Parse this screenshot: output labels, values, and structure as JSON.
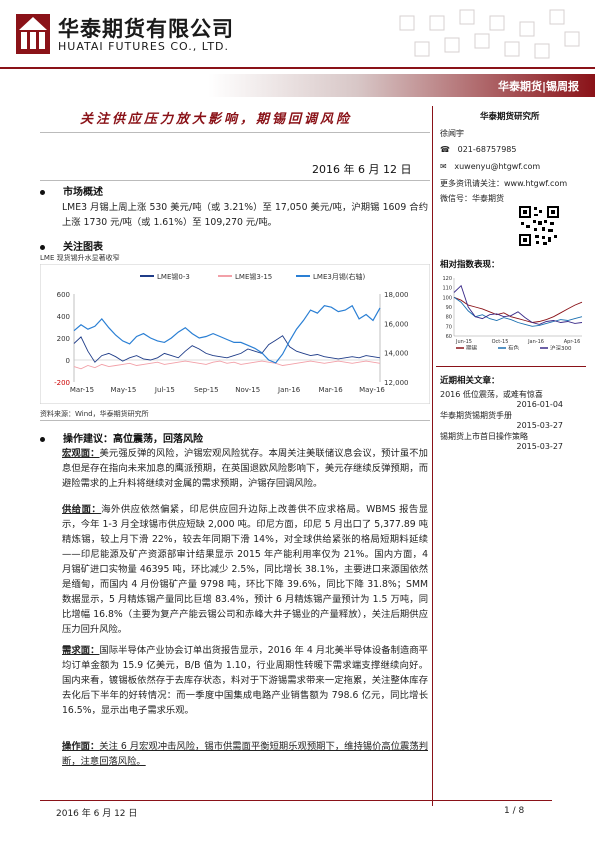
{
  "header": {
    "company_cn": "华泰期货有限公司",
    "company_en": "HUATAI FUTURES CO., LTD.",
    "banner": "华泰期货|锡周报"
  },
  "title": "关注供应压力放大影响，期锡回调风险",
  "date": "2016 年 6 月 12 日",
  "sections": {
    "market_head": "市场概述",
    "market_text": "LME3 月锡上周上涨 530 美元/吨（或 3.21%）至 17,050 美元/吨，沪期锡 1609 合约上涨 1730 元/吨（或 1.61%）至 109,270 元/吨。",
    "chart_head": "关注图表",
    "chart_caption": "LME 现货锡升水显著收窄",
    "chart_source": "资料来源：Wind，华泰期货研究所",
    "advice_head": "操作建议：高位震荡，回落风险",
    "macro_label": "宏观面：",
    "macro_text": "美元强反弹的风险，沪锡宏观风险犹存。本周关注美联储议息会议，预计虽不加息但是存在指向未来加息的鹰派预期，在英国退欧风险影响下，美元存继续反弹预期，而避险需求的上升料将继续对金属的需求预期，沪锡存回调风险。",
    "supply_label": "供给面：",
    "supply_text": "海外供应依然偏紧，印尼供应回升边际上改善供不应求格局。WBMS 报告显示，今年 1-3 月全球锡市供应短缺 2,000 吨。印尼方面，印尼 5 月出口了 5,377.89 吨精炼锡，较上月下滑 22%，较去年同期下滑 14%，对全球供给紧张的格局短期料延续——印尼能源及矿产资源部审计结果显示 2015 年产能利用率仅为 21%。国内方面，4 月锡矿进口实物量 46395 吨，环比减少 2.5%，同比增长 38.1%，主要进口来源国依然是缅甸，而国内 4 月份锡矿产量 9798 吨，环比下降 39.6%，同比下降 31.8%；SMM 数据显示，5 月精炼锡产量同比巨增 83.4%，预计 6 月精炼锡产量预计为 1.5 万吨，同比增幅 16.8%（主要为复产产能云锡公司和赤峰大井子锡业的产量释放），关注后期供应压力回升风险。",
    "demand_label": "需求面：",
    "demand_text": "国际半导体产业协会订单出货报告显示，2016 年 4 月北美半导体设备制造商平均订单金额为 15.9 亿美元，B/B 值为 1.10，行业周期性转暖下需求端支撑继续向好。国内来看，镀锡板依然存于去库存状态，料对于下游锡需求带来一定拖累，关注整体库存去化后下半年的好转情况：而一季度中国集成电路产业销售额为 798.6 亿元，同比增长 16.5%，显示出电子需求乐观。",
    "op_label": "操作面：",
    "op_text": "关注 6 月宏观冲击风险，锡市供需面平衡短期乐观预期下，维持锡价高位震荡判断，注意回落风险。"
  },
  "sidebar": {
    "institute": "华泰期货研究所",
    "analyst": "徐闻宇",
    "phone": "021-68757985",
    "email": "xuwenyu@htgwf.com",
    "more_label": "更多资讯请关注：",
    "website": "www.htgwf.com",
    "wechat": "微信号：华泰期货",
    "relative_index_head": "相对指数表现：",
    "recent_head": "近期相关文章：",
    "articles": [
      {
        "title": "2016 低位震荡，或难有惊喜",
        "date": "2016-01-04"
      },
      {
        "title": "华泰期货锡期货手册",
        "date": "2015-03-27"
      },
      {
        "title": "锡期货上市首日操作策略",
        "date": "2015-03-27"
      }
    ]
  },
  "footer": {
    "date": "2016 年 6 月 12 日",
    "page": "1 / 8"
  },
  "chart_data": [
    {
      "type": "line",
      "title": "",
      "x_ticks": [
        "Mar-15",
        "May-15",
        "Jul-15",
        "Sep-15",
        "Nov-15",
        "Jan-16",
        "Mar-16",
        "May-16"
      ],
      "y_left_ticks": [
        -200,
        0,
        200,
        400,
        600
      ],
      "y_right_ticks": [
        12000,
        14000,
        16000,
        18000
      ],
      "ylim_left": [
        -200,
        600
      ],
      "ylim_right": [
        12000,
        18000
      ],
      "legend": [
        "LME锡0-3",
        "LME锡3-15",
        "LME3月锡(右轴)"
      ],
      "series": [
        {
          "name": "LME锡0-3",
          "color": "#1f3c88",
          "axis": "left",
          "values": [
            150,
            210,
            80,
            -20,
            40,
            60,
            30,
            -10,
            20,
            40,
            10,
            0,
            20,
            60,
            40,
            20,
            80,
            130,
            100,
            60,
            40,
            30,
            20,
            40,
            60,
            100,
            80,
            60,
            140,
            180,
            220,
            120,
            80,
            60,
            40,
            50,
            30,
            20,
            10,
            20,
            30,
            20,
            40,
            30,
            20
          ]
        },
        {
          "name": "LME锡3-15",
          "color": "#f2a0a8",
          "axis": "left",
          "values": [
            -60,
            -80,
            -50,
            -70,
            -40,
            -60,
            -50,
            -40,
            -30,
            -50,
            -40,
            -30,
            -20,
            -40,
            -30,
            -20,
            -10,
            -20,
            -30,
            -40,
            -20,
            -10,
            -30,
            -20,
            -40,
            -30,
            -20,
            -10,
            -20,
            -30,
            -50,
            -40,
            -30,
            -20,
            -10,
            -20,
            -30,
            -20,
            -10,
            -20,
            -30,
            -20,
            -10,
            -20,
            -30
          ]
        },
        {
          "name": "LME3月锡(右轴)",
          "color": "#2a7fd4",
          "axis": "right",
          "values": [
            15500,
            15900,
            15600,
            15800,
            16300,
            15700,
            15200,
            14800,
            14600,
            15100,
            15300,
            15000,
            14800,
            14700,
            15000,
            15400,
            15700,
            15300,
            15000,
            15100,
            15300,
            15100,
            14900,
            14700,
            14700,
            14500,
            14300,
            14000,
            13500,
            13300,
            13900,
            14800,
            15600,
            16200,
            16900,
            16700,
            17200,
            17100,
            16800,
            16900,
            17200,
            16300,
            16600,
            16200,
            17050
          ]
        }
      ]
    },
    {
      "type": "line",
      "title": "",
      "x_ticks": [
        "Jun-15",
        "Oct-15",
        "Jan-16",
        "Apr-16"
      ],
      "y_ticks": [
        60,
        70,
        80,
        90,
        100,
        110,
        120
      ],
      "ylim": [
        60,
        120
      ],
      "legend": [
        "期锡",
        "有色",
        "沪深300"
      ],
      "series": [
        {
          "name": "期锡",
          "color": "#8a1218",
          "values": [
            100,
            97,
            92,
            90,
            88,
            85,
            82,
            84,
            80,
            78,
            76,
            74,
            75,
            77,
            80,
            84,
            88,
            92,
            95
          ]
        },
        {
          "name": "有色",
          "color": "#1a6fb0",
          "values": [
            100,
            95,
            86,
            80,
            82,
            78,
            76,
            79,
            77,
            74,
            72,
            70,
            71,
            73,
            75,
            77,
            76,
            78,
            80
          ]
        },
        {
          "name": "沪深300",
          "color": "#3a2a88",
          "values": [
            105,
            112,
            90,
            80,
            78,
            82,
            83,
            80,
            81,
            85,
            79,
            74,
            72,
            75,
            76,
            74,
            75,
            73,
            74
          ]
        }
      ]
    }
  ]
}
